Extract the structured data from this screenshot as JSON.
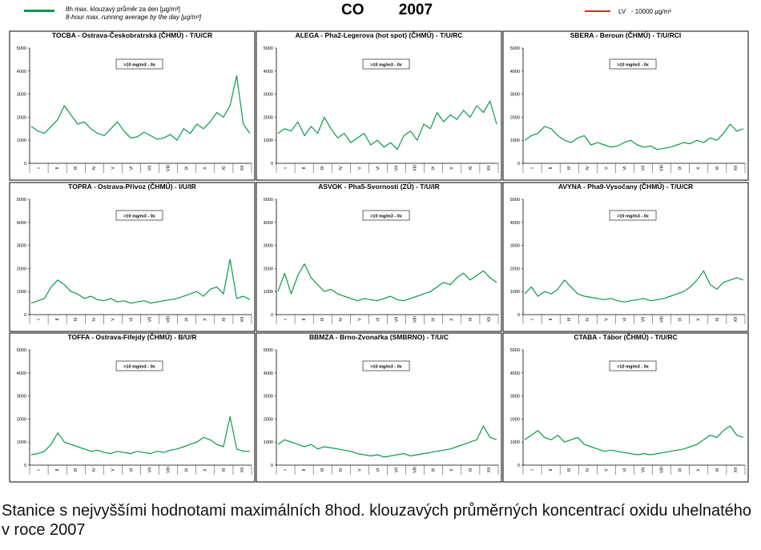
{
  "header": {
    "title_left": "CO",
    "title_right": "2007",
    "legend_line_label_cs": "8h max. klouzavý průměr za den [µg/m³]",
    "legend_line_label_en": "8-hour max. running average by the day  [µg/m³]",
    "legend_limit_label_prefix": "LV",
    "legend_limit_label": "- 10000 µg/m³",
    "line_color": "#0a9a4a",
    "limit_color": "#e0251b"
  },
  "caption": "Stanice s nejvyššími hodnotami maximálních 8hod. klouzavých průměrných koncentrací oxidu uhelnatého v roce 2007",
  "chart_data": [
    {
      "type": "line",
      "title": "TOCBA - Ostrava-Českobratrská (ČHMÚ) - T/U/CR",
      "annotation": ">10 mg/m3 - 0x",
      "ylim": [
        0,
        5000
      ],
      "yticks": [
        0,
        1000,
        2000,
        3000,
        4000,
        5000
      ],
      "xticks": [
        "I",
        "II",
        "III",
        "IV",
        "V",
        "VI",
        "VII",
        "VIII",
        "IX",
        "X",
        "XI",
        "XII"
      ],
      "series": [
        {
          "values": [
            1600,
            1400,
            1300,
            1600,
            1900,
            2500,
            2100,
            1700,
            1800,
            1500,
            1300,
            1200,
            1500,
            1800,
            1400,
            1100,
            1150,
            1350,
            1200,
            1050,
            1100,
            1250,
            1000,
            1500,
            1300,
            1700,
            1500,
            1800,
            2200,
            2000,
            2500,
            3800,
            1700,
            1300
          ]
        }
      ]
    },
    {
      "type": "line",
      "title": "ALEGA - Pha2-Legerova (hot spot) (ČHMÚ) - T/U/RC",
      "annotation": ">10 mg/m3 - 0x",
      "ylim": [
        0,
        5000
      ],
      "yticks": [
        0,
        1000,
        2000,
        3000,
        4000,
        5000
      ],
      "xticks": [
        "I",
        "II",
        "III",
        "IV",
        "V",
        "VI",
        "VII",
        "VIII",
        "IX",
        "X",
        "XI",
        "XII"
      ],
      "series": [
        {
          "values": [
            1300,
            1500,
            1400,
            1800,
            1200,
            1600,
            1300,
            2000,
            1500,
            1100,
            1300,
            900,
            1100,
            1300,
            800,
            1000,
            700,
            900,
            600,
            1200,
            1400,
            1000,
            1700,
            1500,
            2200,
            1800,
            2100,
            1900,
            2300,
            2000,
            2500,
            2200,
            2700,
            1700
          ]
        }
      ]
    },
    {
      "type": "line",
      "title": "SBERA - Beroun (ČHMÚ) - T/U/RCI",
      "annotation": ">10 mg/m3 - 0x",
      "ylim": [
        0,
        5000
      ],
      "yticks": [
        0,
        1000,
        2000,
        3000,
        4000,
        5000
      ],
      "xticks": [
        "I",
        "II",
        "III",
        "IV",
        "V",
        "VI",
        "VII",
        "VIII",
        "IX",
        "X",
        "XI",
        "XII"
      ],
      "series": [
        {
          "values": [
            1000,
            1200,
            1300,
            1600,
            1500,
            1200,
            1000,
            900,
            1100,
            1200,
            800,
            900,
            800,
            700,
            750,
            900,
            1000,
            800,
            700,
            750,
            600,
            650,
            700,
            800,
            900,
            850,
            1000,
            900,
            1100,
            1000,
            1300,
            1700,
            1400,
            1500
          ]
        }
      ]
    },
    {
      "type": "line",
      "title": "TOPRA - Ostrava-Přívoz (ČHMÚ) - I/U/IR",
      "annotation": ">10 mg/m3 - 0x",
      "ylim": [
        0,
        5000
      ],
      "yticks": [
        0,
        1000,
        2000,
        3000,
        4000,
        5000
      ],
      "xticks": [
        "I",
        "II",
        "III",
        "IV",
        "V",
        "VI",
        "VII",
        "VIII",
        "IX",
        "X",
        "XI",
        "XII"
      ],
      "series": [
        {
          "values": [
            500,
            600,
            700,
            1200,
            1500,
            1300,
            1000,
            900,
            700,
            800,
            650,
            600,
            700,
            550,
            600,
            500,
            550,
            600,
            500,
            550,
            600,
            650,
            700,
            800,
            900,
            1000,
            800,
            1100,
            1200,
            900,
            2400,
            700,
            800,
            650
          ]
        }
      ]
    },
    {
      "type": "line",
      "title": "ASVOK - Pha5-Svornosti (ZÚ) - T/U/IR",
      "annotation": ">10 mg/m3 - 0x",
      "ylim": [
        0,
        5000
      ],
      "yticks": [
        0,
        1000,
        2000,
        3000,
        4000,
        5000
      ],
      "xticks": [
        "I",
        "II",
        "III",
        "IV",
        "V",
        "VI",
        "VII",
        "VIII",
        "IX",
        "X",
        "XI",
        "XII"
      ],
      "series": [
        {
          "values": [
            1000,
            1800,
            900,
            1700,
            2200,
            1600,
            1300,
            1000,
            1100,
            900,
            800,
            700,
            600,
            700,
            650,
            600,
            700,
            800,
            650,
            600,
            700,
            800,
            900,
            1000,
            1200,
            1400,
            1300,
            1600,
            1800,
            1500,
            1700,
            1900,
            1600,
            1400
          ]
        }
      ]
    },
    {
      "type": "line",
      "title": "AVYNA - Pha9-Vysočany (ČHMÚ) - T/U/CR",
      "annotation": ">10 mg/m3 - 0x",
      "ylim": [
        0,
        5000
      ],
      "yticks": [
        0,
        1000,
        2000,
        3000,
        4000,
        5000
      ],
      "xticks": [
        "I",
        "II",
        "III",
        "IV",
        "V",
        "VI",
        "VII",
        "VIII",
        "IX",
        "X",
        "XI",
        "XII"
      ],
      "series": [
        {
          "values": [
            900,
            1200,
            800,
            1000,
            900,
            1100,
            1500,
            1200,
            900,
            800,
            750,
            700,
            650,
            700,
            600,
            550,
            600,
            650,
            700,
            600,
            650,
            700,
            800,
            900,
            1000,
            1200,
            1500,
            1900,
            1300,
            1100,
            1400,
            1500,
            1600,
            1500
          ]
        }
      ]
    },
    {
      "type": "line",
      "title": "TOFFA - Ostrava-Fifejdy (ČHMÚ) - B/U/R",
      "annotation": ">10 mg/m3 - 0x",
      "ylim": [
        0,
        5000
      ],
      "yticks": [
        0,
        1000,
        2000,
        3000,
        4000,
        5000
      ],
      "xticks": [
        "I",
        "II",
        "III",
        "IV",
        "V",
        "VI",
        "VII",
        "VIII",
        "IX",
        "X",
        "XI",
        "XII"
      ],
      "series": [
        {
          "values": [
            450,
            500,
            600,
            900,
            1400,
            1000,
            900,
            800,
            700,
            600,
            650,
            550,
            500,
            600,
            550,
            500,
            600,
            550,
            500,
            600,
            550,
            650,
            700,
            800,
            900,
            1000,
            1200,
            1100,
            900,
            800,
            2100,
            700,
            600,
            600
          ]
        }
      ]
    },
    {
      "type": "line",
      "title": "BBMZA - Brno-Zvonařka (SMBRNO) - T/U/C",
      "annotation": ">10 mg/m3 - 0x",
      "ylim": [
        0,
        5000
      ],
      "yticks": [
        0,
        1000,
        2000,
        3000,
        4000,
        5000
      ],
      "xticks": [
        "I",
        "II",
        "III",
        "IV",
        "V",
        "VI",
        "VII",
        "VIII",
        "IX",
        "X",
        "XI",
        "XII"
      ],
      "series": [
        {
          "values": [
            900,
            1100,
            1000,
            900,
            800,
            900,
            700,
            800,
            750,
            700,
            650,
            600,
            500,
            450,
            400,
            450,
            350,
            400,
            450,
            500,
            400,
            450,
            500,
            550,
            600,
            650,
            700,
            800,
            900,
            1000,
            1100,
            1700,
            1200,
            1100
          ]
        }
      ]
    },
    {
      "type": "line",
      "title": "CTABA - Tábor (ČHMÚ) - T/U/RC",
      "annotation": ">10 mg/m3 - 0x",
      "ylim": [
        0,
        5000
      ],
      "yticks": [
        0,
        1000,
        2000,
        3000,
        4000,
        5000
      ],
      "xticks": [
        "I",
        "II",
        "III",
        "IV",
        "V",
        "VI",
        "VII",
        "VIII",
        "IX",
        "X",
        "XI",
        "XII"
      ],
      "series": [
        {
          "values": [
            1100,
            1300,
            1500,
            1200,
            1100,
            1300,
            1000,
            1100,
            1200,
            900,
            800,
            700,
            600,
            650,
            600,
            550,
            500,
            450,
            500,
            450,
            500,
            550,
            600,
            650,
            700,
            800,
            900,
            1100,
            1300,
            1200,
            1500,
            1700,
            1300,
            1200
          ]
        }
      ]
    }
  ]
}
